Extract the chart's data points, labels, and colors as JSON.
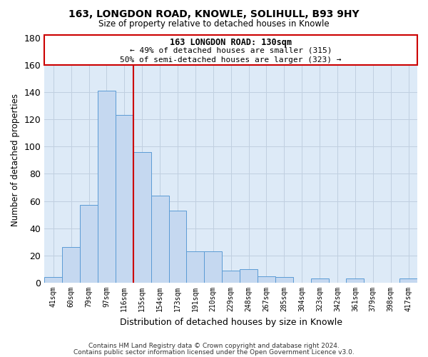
{
  "title": "163, LONGDON ROAD, KNOWLE, SOLIHULL, B93 9HY",
  "subtitle": "Size of property relative to detached houses in Knowle",
  "xlabel": "Distribution of detached houses by size in Knowle",
  "ylabel": "Number of detached properties",
  "bar_labels": [
    "41sqm",
    "60sqm",
    "79sqm",
    "97sqm",
    "116sqm",
    "135sqm",
    "154sqm",
    "173sqm",
    "191sqm",
    "210sqm",
    "229sqm",
    "248sqm",
    "267sqm",
    "285sqm",
    "304sqm",
    "323sqm",
    "342sqm",
    "361sqm",
    "379sqm",
    "398sqm",
    "417sqm"
  ],
  "bar_values": [
    4,
    26,
    57,
    141,
    123,
    96,
    64,
    53,
    23,
    23,
    9,
    10,
    5,
    4,
    0,
    3,
    0,
    3,
    0,
    0,
    3
  ],
  "bar_color": "#c5d8f0",
  "bar_edge_color": "#5b9bd5",
  "vline_color": "#cc0000",
  "vline_bar_index": 5,
  "ylim": [
    0,
    180
  ],
  "yticks": [
    0,
    20,
    40,
    60,
    80,
    100,
    120,
    140,
    160,
    180
  ],
  "annotation_title": "163 LONGDON ROAD: 130sqm",
  "annotation_line1": "← 49% of detached houses are smaller (315)",
  "annotation_line2": "50% of semi-detached houses are larger (323) →",
  "annotation_box_color": "#ffffff",
  "annotation_box_edge": "#cc0000",
  "footer1": "Contains HM Land Registry data © Crown copyright and database right 2024.",
  "footer2": "Contains public sector information licensed under the Open Government Licence v3.0.",
  "background_color": "#ddeaf7",
  "fig_bg": "#ffffff",
  "grid_color": "#c0cfe0"
}
